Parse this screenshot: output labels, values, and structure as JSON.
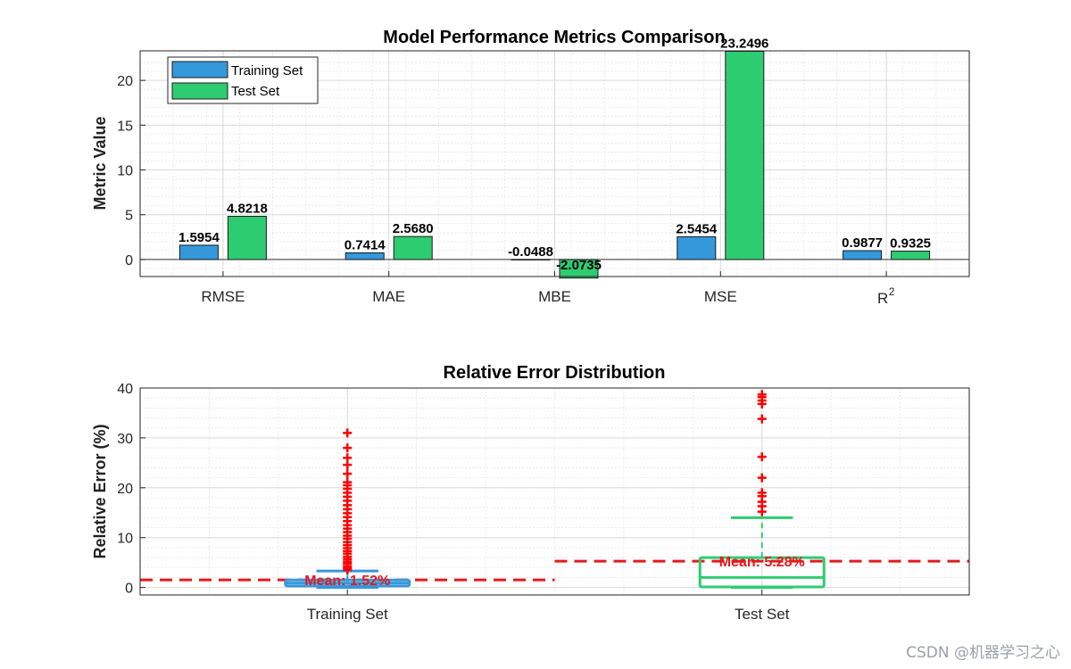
{
  "watermark": "CSDN @机器学习之心",
  "chart_data": [
    {
      "type": "bar",
      "title": "Model Performance Metrics Comparison",
      "ylabel": "Metric Value",
      "xlabel": "",
      "categories": [
        "RMSE",
        "MAE",
        "MBE",
        "MSE",
        "R2"
      ],
      "series": [
        {
          "name": "Training Set",
          "values": [
            1.5954,
            0.7414,
            -0.0488,
            2.5454,
            0.9877
          ],
          "labels": [
            "1.5954",
            "0.7414",
            "-0.0488",
            "2.5454",
            "0.9877"
          ],
          "color": "#3498db"
        },
        {
          "name": "Test Set",
          "values": [
            4.8218,
            2.568,
            -2.0735,
            23.2496,
            0.9325
          ],
          "labels": [
            "4.8218",
            "2.5680",
            "-2.0735",
            "23.2496",
            "0.9325"
          ],
          "color": "#2ecc71"
        }
      ],
      "ylim": [
        -1.9,
        23.3
      ],
      "yticks": [
        0,
        5,
        10,
        15,
        20
      ],
      "grid": true,
      "legend_position": "top-left"
    },
    {
      "type": "box",
      "title": "Relative Error Distribution",
      "ylabel": "Relative Error (%)",
      "xlabel": "",
      "categories": [
        "Training Set",
        "Test Set"
      ],
      "ylim": [
        -1.5,
        40
      ],
      "yticks": [
        0,
        10,
        20,
        30,
        40
      ],
      "grid": true,
      "boxes": [
        {
          "name": "Training Set",
          "color": "#3498db",
          "q1": 0.3,
          "median": 0.9,
          "q3": 1.5,
          "whisker_low": 0,
          "whisker_high": 3.3,
          "mean": 1.52,
          "mean_label": "Mean: 1.52%",
          "outliers": [
            3.5,
            3.9,
            4.3,
            4.8,
            5.2,
            5.7,
            6.2,
            6.8,
            7.3,
            7.9,
            8.5,
            9.1,
            9.8,
            10.4,
            11.1,
            11.8,
            12.5,
            13.3,
            14.1,
            14.9,
            15.7,
            16.5,
            17.4,
            18.2,
            19.0,
            19.8,
            20.5,
            21.1,
            22.8,
            24.6,
            26.0,
            28.0,
            31.0
          ]
        },
        {
          "name": "Test Set",
          "color": "#2ecc71",
          "q1": 0.1,
          "median": 2.0,
          "q3": 6.0,
          "whisker_low": 0,
          "whisker_high": 14.0,
          "mean": 5.28,
          "mean_label": "Mean: 5.28%",
          "outliers": [
            15.2,
            16.3,
            17.2,
            18.3,
            19.0,
            22.0,
            26.2,
            33.8,
            36.8,
            37.5,
            38.2,
            38.7
          ]
        }
      ]
    }
  ]
}
